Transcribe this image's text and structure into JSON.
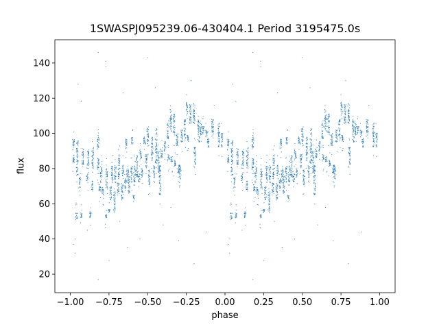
{
  "chart_data": {
    "type": "scatter",
    "title": "1SWASPJ095239.06-430404.1 Period 3195475.0s",
    "xlabel": "phase",
    "ylabel": "flux",
    "xlim": [
      -1.1,
      1.1
    ],
    "ylim": [
      9.5,
      153.2
    ],
    "xticks": [
      -1.0,
      -0.75,
      -0.5,
      -0.25,
      0.0,
      0.25,
      0.5,
      0.75,
      1.0
    ],
    "xtick_labels": [
      "−1.00",
      "−0.75",
      "−0.50",
      "−0.25",
      "0.00",
      "0.25",
      "0.50",
      "0.75",
      "1.00"
    ],
    "yticks": [
      20,
      40,
      60,
      80,
      100,
      120,
      140
    ],
    "ytick_labels": [
      "20",
      "40",
      "60",
      "80",
      "100",
      "120",
      "140"
    ],
    "grid": false,
    "color": "#1f77b4",
    "note_folding": "each phase value p in [-1,0] is shown at p and p+1",
    "clusters_phase_fluxmin_fluxmax": [
      [
        -0.98,
        92,
        97
      ],
      [
        -0.98,
        83,
        88
      ],
      [
        -0.96,
        51,
        55
      ],
      [
        -0.955,
        76,
        96
      ],
      [
        -0.94,
        69,
        75
      ],
      [
        -0.93,
        52,
        55
      ],
      [
        -0.92,
        82,
        92
      ],
      [
        -0.89,
        73,
        77
      ],
      [
        -0.885,
        80,
        91
      ],
      [
        -0.87,
        52,
        56
      ],
      [
        -0.86,
        68,
        73
      ],
      [
        -0.855,
        80,
        92
      ],
      [
        -0.82,
        92,
        99
      ],
      [
        -0.82,
        77,
        86
      ],
      [
        -0.81,
        67,
        71
      ],
      [
        -0.8,
        72,
        82
      ],
      [
        -0.79,
        65,
        70
      ],
      [
        -0.77,
        52,
        54
      ],
      [
        -0.765,
        68,
        80
      ],
      [
        -0.75,
        55,
        57
      ],
      [
        -0.74,
        62,
        70
      ],
      [
        -0.73,
        72,
        82
      ],
      [
        -0.715,
        55,
        67
      ],
      [
        -0.71,
        72,
        81
      ],
      [
        -0.69,
        65,
        72
      ],
      [
        -0.685,
        74,
        88
      ],
      [
        -0.665,
        62,
        72
      ],
      [
        -0.66,
        76,
        82
      ],
      [
        -0.645,
        68,
        74
      ],
      [
        -0.64,
        91,
        97
      ],
      [
        -0.63,
        72,
        80
      ],
      [
        -0.62,
        66,
        76
      ],
      [
        -0.605,
        72,
        82
      ],
      [
        -0.6,
        94,
        98
      ],
      [
        -0.59,
        63,
        65
      ],
      [
        -0.585,
        72,
        82
      ],
      [
        -0.57,
        75,
        88
      ],
      [
        -0.555,
        72,
        77
      ],
      [
        -0.545,
        85,
        92
      ],
      [
        -0.535,
        75,
        80
      ],
      [
        -0.52,
        93,
        98
      ],
      [
        -0.51,
        80,
        88
      ],
      [
        -0.5,
        92,
        103
      ],
      [
        -0.49,
        70,
        80
      ],
      [
        -0.47,
        84,
        98
      ],
      [
        -0.46,
        75,
        82
      ],
      [
        -0.445,
        83,
        103
      ],
      [
        -0.43,
        78,
        90
      ],
      [
        -0.42,
        65,
        82
      ],
      [
        -0.41,
        86,
        92
      ],
      [
        -0.39,
        90,
        96
      ],
      [
        -0.37,
        97,
        106
      ],
      [
        -0.365,
        84,
        88
      ],
      [
        -0.35,
        101,
        114
      ],
      [
        -0.345,
        84,
        87
      ],
      [
        -0.33,
        99,
        111
      ],
      [
        -0.325,
        81,
        85
      ],
      [
        -0.31,
        92,
        100
      ],
      [
        -0.3,
        75,
        82
      ],
      [
        -0.29,
        74,
        82
      ],
      [
        -0.28,
        95,
        102
      ],
      [
        -0.26,
        97,
        108
      ],
      [
        -0.245,
        112,
        118
      ],
      [
        -0.24,
        95,
        99
      ],
      [
        -0.225,
        106,
        117
      ],
      [
        -0.2,
        106,
        117
      ],
      [
        -0.195,
        80,
        92
      ],
      [
        -0.17,
        95,
        108
      ],
      [
        -0.155,
        99,
        107
      ],
      [
        -0.14,
        100,
        104
      ],
      [
        -0.12,
        98,
        102
      ],
      [
        -0.11,
        92,
        97
      ],
      [
        -0.08,
        97,
        108
      ],
      [
        -0.04,
        92,
        106
      ],
      [
        -0.02,
        92,
        100
      ]
    ],
    "outliers_phase_flux": [
      [
        -0.82,
        146
      ],
      [
        -0.77,
        141
      ],
      [
        -0.77,
        138
      ],
      [
        -0.66,
        123
      ],
      [
        -0.5,
        143
      ],
      [
        -0.97,
        40
      ],
      [
        -0.97,
        32
      ],
      [
        -0.98,
        37
      ],
      [
        -0.75,
        28
      ],
      [
        -0.82,
        17
      ],
      [
        -0.89,
        45
      ],
      [
        -0.45,
        126
      ],
      [
        -0.22,
        130
      ],
      [
        -0.25,
        122
      ],
      [
        -0.07,
        116
      ],
      [
        -0.2,
        26
      ],
      [
        -0.63,
        35
      ],
      [
        -0.3,
        39
      ],
      [
        -0.55,
        40
      ],
      [
        -0.68,
        50
      ],
      [
        -0.4,
        48
      ],
      [
        -0.95,
        128
      ],
      [
        -0.93,
        118
      ],
      [
        -0.35,
        58
      ],
      [
        -0.12,
        44
      ]
    ]
  }
}
